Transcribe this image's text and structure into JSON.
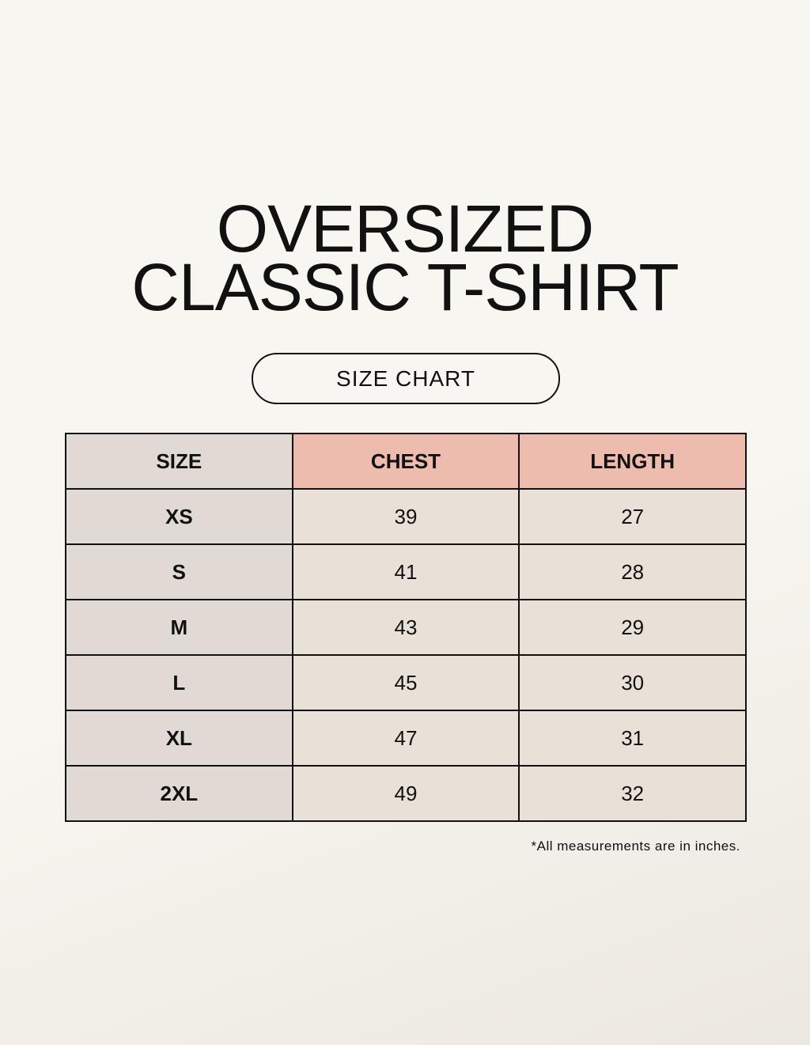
{
  "title_line1": "OVERSIZED",
  "title_line2": "CLASSIC T-SHIRT",
  "badge": "SIZE CHART",
  "table": {
    "headers": [
      "SIZE",
      "CHEST",
      "LENGTH"
    ],
    "rows": [
      [
        "XS",
        "39",
        "27"
      ],
      [
        "S",
        "41",
        "28"
      ],
      [
        "M",
        "43",
        "29"
      ],
      [
        "L",
        "45",
        "30"
      ],
      [
        "XL",
        "47",
        "31"
      ],
      [
        "2XL",
        "49",
        "32"
      ]
    ]
  },
  "note": "*All measurements are in inches.",
  "colors": {
    "size_column": "#e0d9d4",
    "header_accent": "#eebcae",
    "cell": "#e9e1d7",
    "background": "#f8f6f0"
  }
}
